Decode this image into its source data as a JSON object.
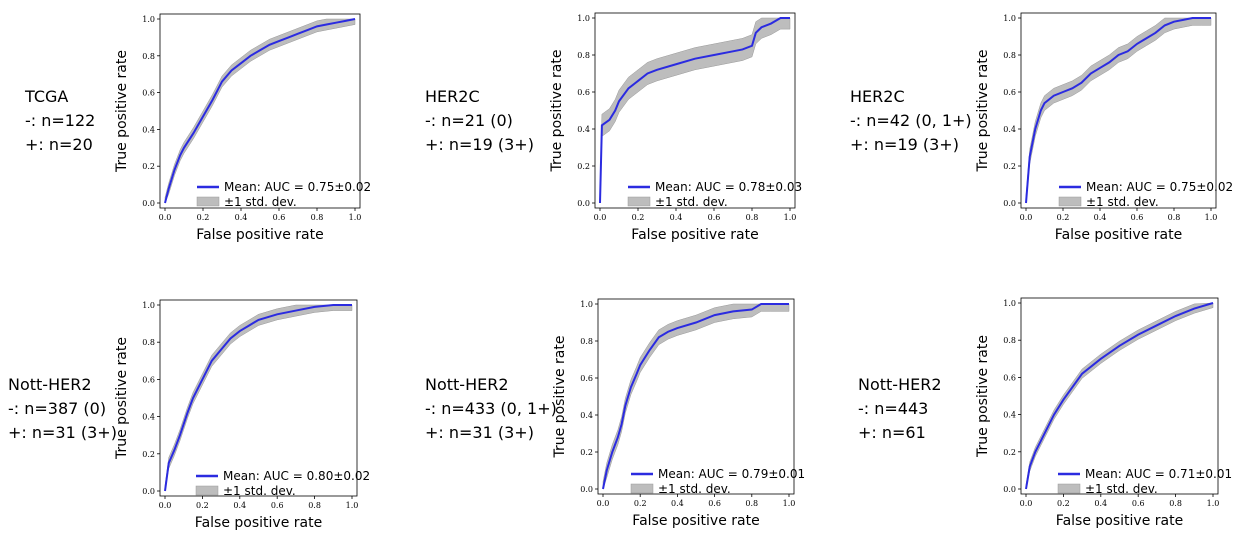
{
  "colors": {
    "mean_line": "#2b2be0",
    "band": "#bdbdbd",
    "band_edge": "#999999"
  },
  "panels": [
    {
      "label": [
        "TCGA",
        "-: n=122",
        "+: n=20"
      ],
      "legend_mean": "Mean: AUC = 0.75±0.02",
      "legend_std": "±1 std. dev."
    },
    {
      "label": [
        "HER2C",
        "-: n=21 (0)",
        "+: n=19 (3+)"
      ],
      "legend_mean": "Mean: AUC = 0.78±0.03",
      "legend_std": "±1 std. dev."
    },
    {
      "label": [
        "HER2C",
        "-: n=42 (0, 1+)",
        "+: n=19 (3+)"
      ],
      "legend_mean": "Mean: AUC = 0.75±0.02",
      "legend_std": "±1 std. dev."
    },
    {
      "label": [
        "Nott-HER2",
        "-: n=387 (0)",
        "+: n=31 (3+)"
      ],
      "legend_mean": "Mean: AUC = 0.80±0.02",
      "legend_std": "±1 std. dev."
    },
    {
      "label": [
        "Nott-HER2",
        "-: n=433 (0, 1+)",
        "+: n=31 (3+)"
      ],
      "legend_mean": "Mean: AUC = 0.79±0.01",
      "legend_std": "±1 std. dev."
    },
    {
      "label": [
        "Nott-HER2",
        "-: n=443",
        "+: n=61"
      ],
      "legend_mean": "Mean: AUC = 0.71±0.01",
      "legend_std": "±1 std. dev."
    }
  ],
  "chart_data": [
    {
      "type": "line",
      "xlabel": "False positive rate",
      "ylabel": "True positive rate",
      "xlim": [
        0,
        1
      ],
      "ylim": [
        0,
        1
      ],
      "xticks": [
        "0.0",
        "0.2",
        "0.4",
        "0.6",
        "0.8",
        "1.0"
      ],
      "yticks": [
        "0.0",
        "0.2",
        "0.4",
        "0.6",
        "0.8",
        "1.0"
      ],
      "legend": "lower right",
      "grid": false,
      "series": [
        {
          "name": "Mean: AUC = 0.75±0.02",
          "x": [
            0,
            0.02,
            0.05,
            0.08,
            0.1,
            0.15,
            0.2,
            0.25,
            0.28,
            0.3,
            0.35,
            0.4,
            0.45,
            0.5,
            0.55,
            0.6,
            0.65,
            0.7,
            0.75,
            0.8,
            0.85,
            0.9,
            0.95,
            1.0
          ],
          "y": [
            0,
            0.08,
            0.18,
            0.26,
            0.3,
            0.38,
            0.47,
            0.56,
            0.62,
            0.66,
            0.72,
            0.76,
            0.8,
            0.83,
            0.86,
            0.88,
            0.9,
            0.92,
            0.94,
            0.96,
            0.97,
            0.98,
            0.99,
            1.0
          ],
          "std": 0.03
        }
      ]
    },
    {
      "type": "line",
      "xlabel": "False positive rate",
      "ylabel": "True positive rate",
      "xlim": [
        0,
        1
      ],
      "ylim": [
        0,
        1
      ],
      "xticks": [
        "0.0",
        "0.2",
        "0.4",
        "0.6",
        "0.8",
        "1.0"
      ],
      "yticks": [
        "0.0",
        "0.2",
        "0.4",
        "0.6",
        "0.8",
        "1.0"
      ],
      "legend": "lower right",
      "grid": false,
      "series": [
        {
          "name": "Mean: AUC = 0.78±0.03",
          "x": [
            0,
            0.01,
            0.05,
            0.08,
            0.1,
            0.15,
            0.2,
            0.25,
            0.3,
            0.4,
            0.5,
            0.6,
            0.7,
            0.75,
            0.8,
            0.82,
            0.85,
            0.9,
            0.95,
            1.0
          ],
          "y": [
            0,
            0.42,
            0.45,
            0.5,
            0.55,
            0.62,
            0.66,
            0.7,
            0.72,
            0.75,
            0.78,
            0.8,
            0.82,
            0.83,
            0.85,
            0.92,
            0.95,
            0.97,
            1.0,
            1.0
          ],
          "std": 0.06
        }
      ]
    },
    {
      "type": "line",
      "xlabel": "False positive rate",
      "ylabel": "True positive rate",
      "xlim": [
        0,
        1
      ],
      "ylim": [
        0,
        1
      ],
      "xticks": [
        "0.0",
        "0.2",
        "0.4",
        "0.6",
        "0.8",
        "1.0"
      ],
      "yticks": [
        "0.0",
        "0.2",
        "0.4",
        "0.6",
        "0.8",
        "1.0"
      ],
      "legend": "lower right",
      "grid": false,
      "series": [
        {
          "name": "Mean: AUC = 0.75±0.02",
          "x": [
            0,
            0.02,
            0.05,
            0.08,
            0.1,
            0.15,
            0.2,
            0.25,
            0.3,
            0.35,
            0.4,
            0.45,
            0.5,
            0.55,
            0.6,
            0.65,
            0.7,
            0.75,
            0.8,
            0.85,
            0.9,
            0.95,
            1.0
          ],
          "y": [
            0,
            0.25,
            0.4,
            0.5,
            0.54,
            0.58,
            0.6,
            0.62,
            0.65,
            0.7,
            0.73,
            0.76,
            0.8,
            0.82,
            0.86,
            0.89,
            0.92,
            0.96,
            0.98,
            0.99,
            1.0,
            1.0,
            1.0
          ],
          "std": 0.04
        }
      ]
    },
    {
      "type": "line",
      "xlabel": "False positive rate",
      "ylabel": "True positive rate",
      "xlim": [
        0,
        1
      ],
      "ylim": [
        0,
        1
      ],
      "xticks": [
        "0.0",
        "0.2",
        "0.4",
        "0.6",
        "0.8",
        "1.0"
      ],
      "yticks": [
        "0.0",
        "0.2",
        "0.4",
        "0.6",
        "0.8",
        "1.0"
      ],
      "legend": "lower right",
      "grid": false,
      "series": [
        {
          "name": "Mean: AUC = 0.80±0.02",
          "x": [
            0,
            0.02,
            0.05,
            0.08,
            0.1,
            0.12,
            0.15,
            0.2,
            0.25,
            0.3,
            0.35,
            0.4,
            0.45,
            0.5,
            0.6,
            0.7,
            0.8,
            0.9,
            1.0
          ],
          "y": [
            0,
            0.15,
            0.22,
            0.3,
            0.36,
            0.42,
            0.5,
            0.6,
            0.7,
            0.76,
            0.82,
            0.86,
            0.89,
            0.92,
            0.95,
            0.97,
            0.99,
            1.0,
            1.0
          ],
          "std": 0.03
        }
      ]
    },
    {
      "type": "line",
      "xlabel": "False positive rate",
      "ylabel": "True positive rate",
      "xlim": [
        0,
        1
      ],
      "ylim": [
        0,
        1
      ],
      "xticks": [
        "0.0",
        "0.2",
        "0.4",
        "0.6",
        "0.8",
        "1.0"
      ],
      "yticks": [
        "0.0",
        "0.2",
        "0.4",
        "0.6",
        "0.8",
        "1.0"
      ],
      "legend": "lower right",
      "grid": false,
      "series": [
        {
          "name": "Mean: AUC = 0.79±0.01",
          "x": [
            0,
            0.02,
            0.05,
            0.08,
            0.1,
            0.12,
            0.15,
            0.18,
            0.2,
            0.25,
            0.3,
            0.35,
            0.4,
            0.5,
            0.6,
            0.7,
            0.8,
            0.85,
            0.9,
            1.0
          ],
          "y": [
            0,
            0.1,
            0.2,
            0.28,
            0.35,
            0.45,
            0.55,
            0.62,
            0.67,
            0.75,
            0.82,
            0.85,
            0.87,
            0.9,
            0.94,
            0.96,
            0.97,
            1.0,
            1.0,
            1.0
          ],
          "std": 0.04
        }
      ]
    },
    {
      "type": "line",
      "xlabel": "False positive rate",
      "ylabel": "True positive rate",
      "xlim": [
        0,
        1
      ],
      "ylim": [
        0,
        1
      ],
      "xticks": [
        "0.0",
        "0.2",
        "0.4",
        "0.6",
        "0.8",
        "1.0"
      ],
      "yticks": [
        "0.0",
        "0.2",
        "0.4",
        "0.6",
        "0.8",
        "1.0"
      ],
      "legend": "lower right",
      "grid": false,
      "series": [
        {
          "name": "Mean: AUC = 0.71±0.01",
          "x": [
            0,
            0.02,
            0.05,
            0.08,
            0.1,
            0.15,
            0.2,
            0.25,
            0.3,
            0.4,
            0.5,
            0.6,
            0.7,
            0.8,
            0.9,
            1.0
          ],
          "y": [
            0,
            0.12,
            0.2,
            0.26,
            0.3,
            0.4,
            0.48,
            0.55,
            0.62,
            0.7,
            0.77,
            0.83,
            0.88,
            0.93,
            0.97,
            1.0
          ],
          "std": 0.025
        }
      ]
    }
  ]
}
